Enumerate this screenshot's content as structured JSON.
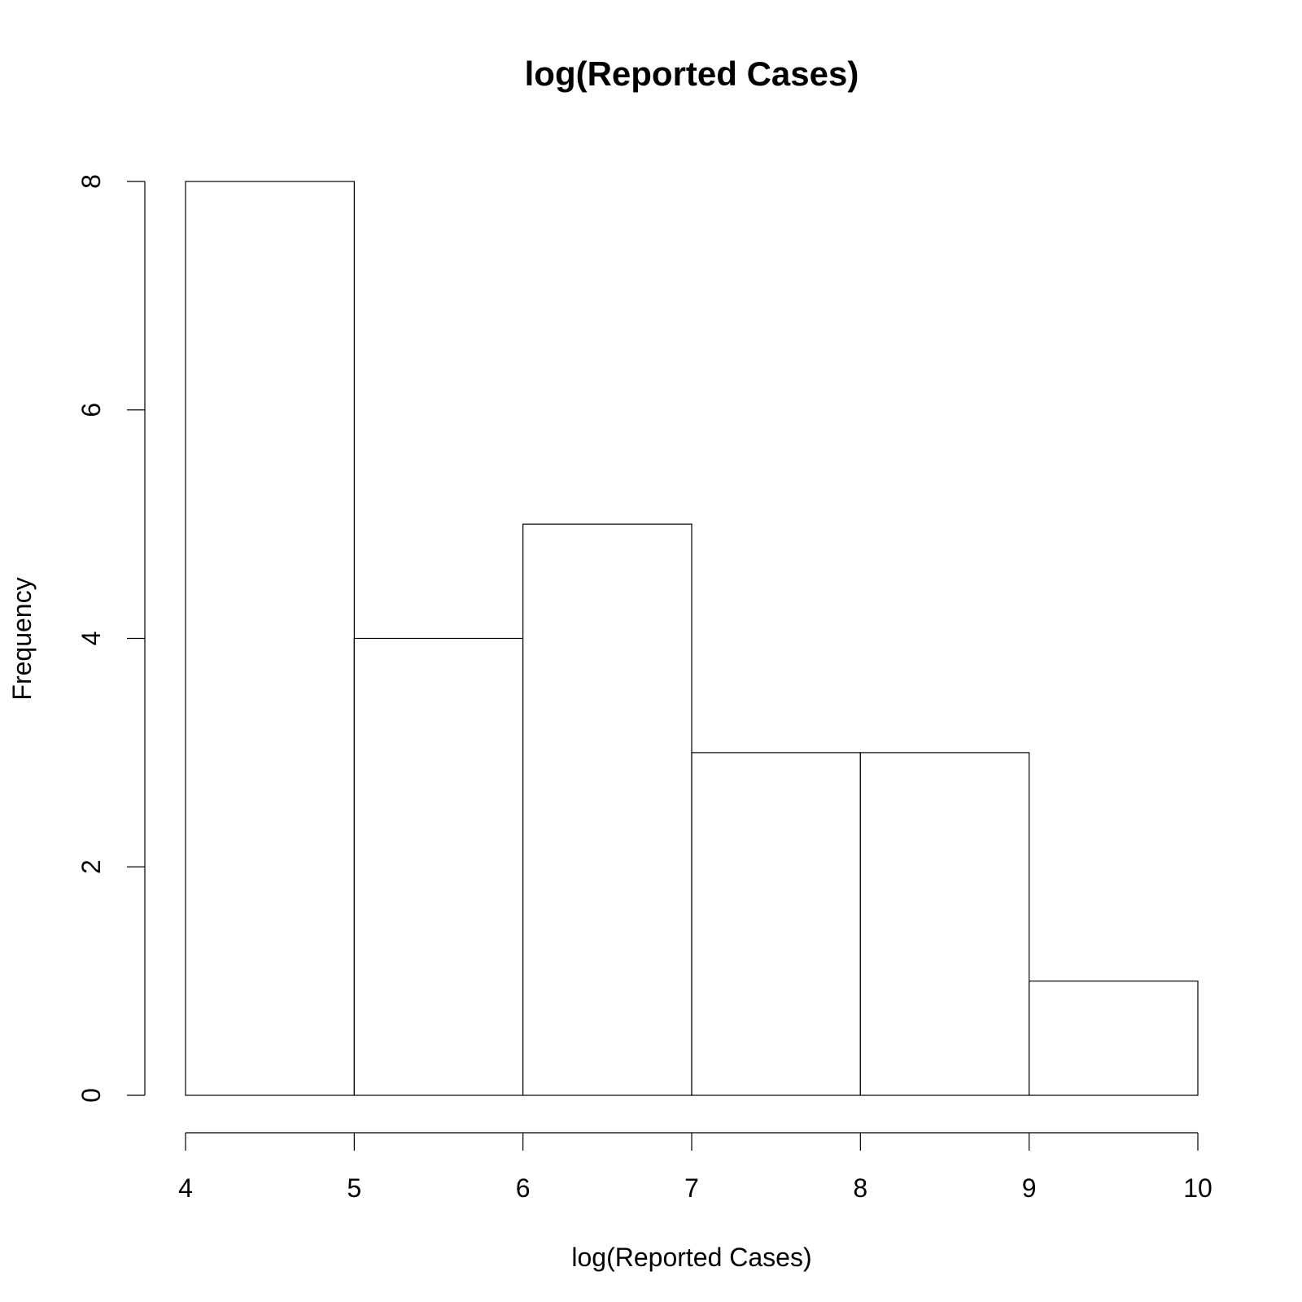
{
  "chart_data": {
    "type": "bar",
    "subtype": "histogram",
    "title": "log(Reported Cases)",
    "xlabel": "log(Reported Cases)",
    "ylabel": "Frequency",
    "bins": [
      {
        "from": 4,
        "to": 5,
        "count": 8
      },
      {
        "from": 5,
        "to": 6,
        "count": 4
      },
      {
        "from": 6,
        "to": 7,
        "count": 5
      },
      {
        "from": 7,
        "to": 8,
        "count": 3
      },
      {
        "from": 8,
        "to": 9,
        "count": 3
      },
      {
        "from": 9,
        "to": 10,
        "count": 1
      }
    ],
    "xlim": [
      4,
      10
    ],
    "ylim": [
      0,
      8
    ],
    "x_ticks": [
      4,
      5,
      6,
      7,
      8,
      9,
      10
    ],
    "y_ticks": [
      0,
      2,
      4,
      6,
      8
    ],
    "grid": false
  }
}
